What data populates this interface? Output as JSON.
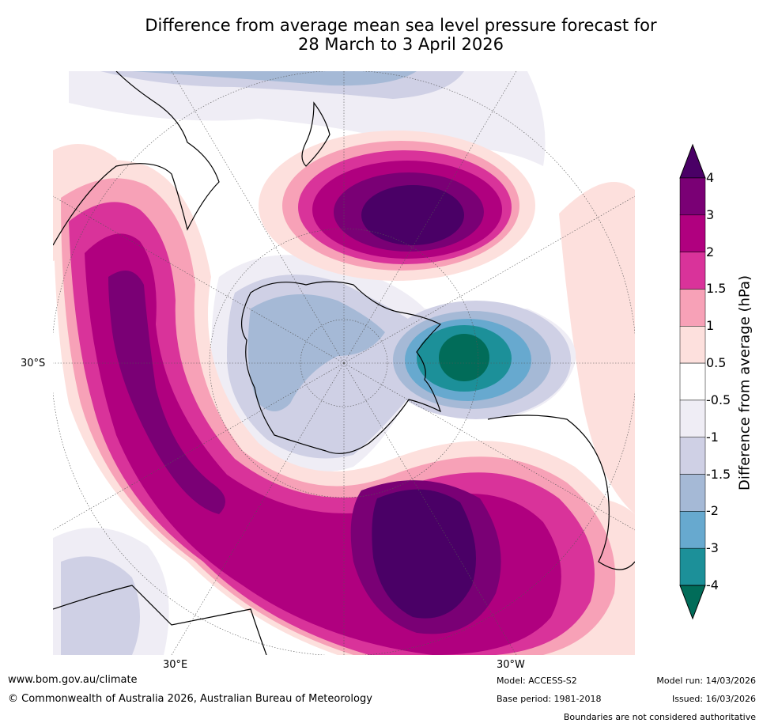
{
  "title": {
    "line1": "Difference from average mean sea level pressure forecast for",
    "line2": "28 March to 3 April 2026"
  },
  "map": {
    "projection_center": "South Pole",
    "latitude_label": "30°S",
    "longitude_labels": {
      "east": "30°E",
      "west": "30°W"
    },
    "anomaly_features": [
      {
        "name": "high-over-south-atlantic",
        "type": "positive",
        "peak": ">4"
      },
      {
        "name": "high-south-of-new-zealand",
        "type": "positive",
        "peak": ">4"
      },
      {
        "name": "ridge-south-indian-ocean",
        "type": "positive",
        "peak": "3 to 4"
      },
      {
        "name": "low-amundsen-sea",
        "type": "negative",
        "peak": "<-4"
      },
      {
        "name": "antarctic-interior",
        "type": "negative",
        "peak": "-1 to -3"
      }
    ]
  },
  "colorbar": {
    "title": "Difference from average (hPa)",
    "ticks": [
      "4",
      "3",
      "2",
      "1.5",
      "1",
      "0.5",
      "-0.5",
      "-1",
      "-1.5",
      "-2",
      "-3",
      "-4"
    ],
    "colors": [
      "#4a0066",
      "#7a0075",
      "#b0007f",
      "#d9339a",
      "#f7a1b7",
      "#fde0dd",
      "#ffffff",
      "#efedf5",
      "#cfd0e5",
      "#a5b9d6",
      "#67a9cf",
      "#1c9099",
      "#016c59"
    ]
  },
  "footer": {
    "url": "www.bom.gov.au/climate",
    "copyright": "© Commonwealth of Australia 2026, Australian Bureau of Meteorology",
    "model": "Model: ACCESS-S2",
    "base_period": "Base period: 1981-2018",
    "model_run": "Model run: 14/03/2026",
    "issued": "Issued: 16/03/2026",
    "disclaimer": "Boundaries are not considered authoritative"
  }
}
